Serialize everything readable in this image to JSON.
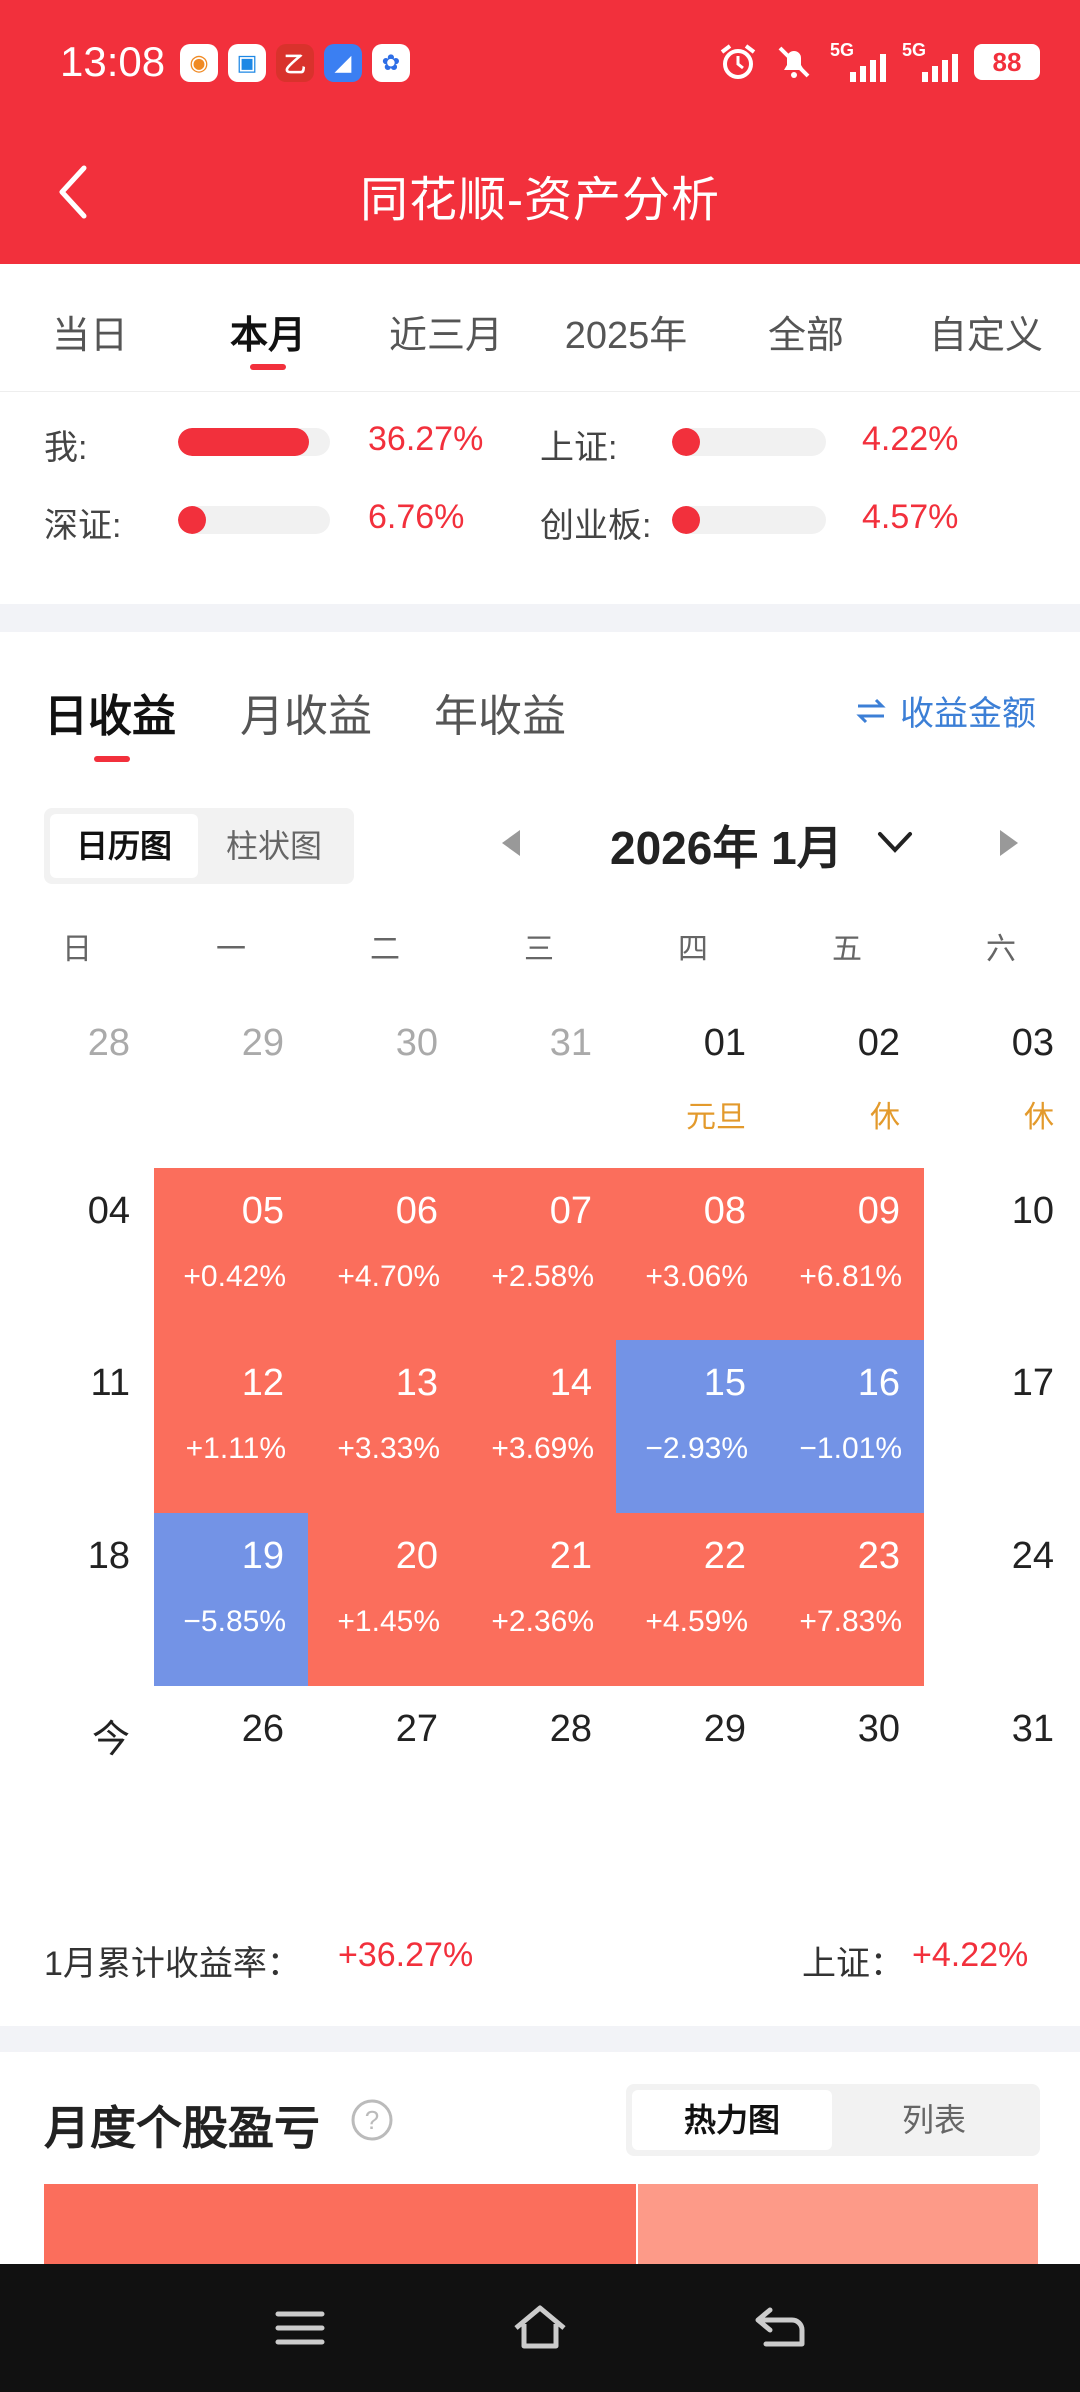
{
  "status_bar": {
    "time": "13:08",
    "signal_label": "5G",
    "battery": "88"
  },
  "header": {
    "title": "同花顺-资产分析"
  },
  "period_tabs": [
    {
      "label": "当日"
    },
    {
      "label": "本月"
    },
    {
      "label": "近三月"
    },
    {
      "label": "2025年"
    },
    {
      "label": "全部"
    },
    {
      "label": "自定义"
    }
  ],
  "active_period": "本月",
  "comparison": [
    {
      "label": "我:",
      "value": "36.27%",
      "level": 0.86
    },
    {
      "label": "上证:",
      "value": "4.22%",
      "level": 0.04
    },
    {
      "label": "深证:",
      "value": "6.76%",
      "level": 0.06
    },
    {
      "label": "创业板:",
      "value": "4.57%",
      "level": 0.04
    }
  ],
  "earnings_tabs": [
    {
      "label": "日收益"
    },
    {
      "label": "月收益"
    },
    {
      "label": "年收益"
    }
  ],
  "amount_link": "收益金额",
  "view_toggle": {
    "calendar": "日历图",
    "bar": "柱状图"
  },
  "month": "2026年 1月",
  "weekdays": [
    "日",
    "一",
    "二",
    "三",
    "四",
    "五",
    "六"
  ],
  "calendar": [
    [
      {
        "day": "28",
        "muted": true
      },
      {
        "day": "29",
        "muted": true
      },
      {
        "day": "30",
        "muted": true
      },
      {
        "day": "31",
        "muted": true
      },
      {
        "day": "01",
        "note": "元旦"
      },
      {
        "day": "02",
        "note": "休"
      },
      {
        "day": "03",
        "note": "休"
      }
    ],
    [
      {
        "day": "04"
      },
      {
        "day": "05",
        "pct": "+0.42%",
        "trend": "up"
      },
      {
        "day": "06",
        "pct": "+4.70%",
        "trend": "up"
      },
      {
        "day": "07",
        "pct": "+2.58%",
        "trend": "up"
      },
      {
        "day": "08",
        "pct": "+3.06%",
        "trend": "up"
      },
      {
        "day": "09",
        "pct": "+6.81%",
        "trend": "up"
      },
      {
        "day": "10"
      }
    ],
    [
      {
        "day": "11"
      },
      {
        "day": "12",
        "pct": "+1.11%",
        "trend": "up"
      },
      {
        "day": "13",
        "pct": "+3.33%",
        "trend": "up"
      },
      {
        "day": "14",
        "pct": "+3.69%",
        "trend": "up"
      },
      {
        "day": "15",
        "pct": "−2.93%",
        "trend": "down"
      },
      {
        "day": "16",
        "pct": "−1.01%",
        "trend": "down"
      },
      {
        "day": "17"
      }
    ],
    [
      {
        "day": "18"
      },
      {
        "day": "19",
        "pct": "−5.85%",
        "trend": "down"
      },
      {
        "day": "20",
        "pct": "+1.45%",
        "trend": "up"
      },
      {
        "day": "21",
        "pct": "+2.36%",
        "trend": "up"
      },
      {
        "day": "22",
        "pct": "+4.59%",
        "trend": "up"
      },
      {
        "day": "23",
        "pct": "+7.83%",
        "trend": "up"
      },
      {
        "day": "24"
      }
    ],
    [
      {
        "day": "今"
      },
      {
        "day": "26"
      },
      {
        "day": "27"
      },
      {
        "day": "28"
      },
      {
        "day": "29"
      },
      {
        "day": "30"
      },
      {
        "day": "31"
      }
    ]
  ],
  "summary": {
    "cum_label": "1月累计收益率：",
    "cum_value": "+36.27%",
    "index_label": "上证：",
    "index_value": "+4.22%"
  },
  "stock_section": {
    "title": "月度个股盈亏",
    "heatmap": "热力图",
    "list": "列表"
  },
  "colors": {
    "brand_red": "#f2303c",
    "gain": "#fb6e5c",
    "loss": "#7393e6",
    "holiday": "#e39a2c"
  }
}
